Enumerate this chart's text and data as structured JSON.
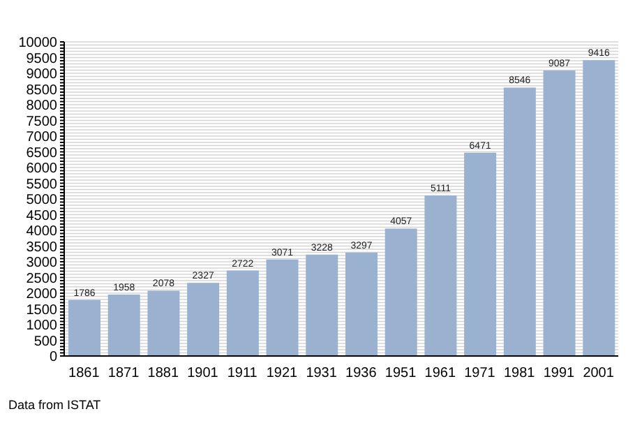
{
  "chart_data": {
    "type": "bar",
    "categories": [
      "1861",
      "1871",
      "1881",
      "1901",
      "1911",
      "1921",
      "1931",
      "1936",
      "1951",
      "1961",
      "1971",
      "1981",
      "1991",
      "2001"
    ],
    "values": [
      1786,
      1958,
      2078,
      2327,
      2722,
      3071,
      3228,
      3297,
      4057,
      5111,
      6471,
      8546,
      9087,
      9416
    ],
    "color": "#9ab2cf",
    "data_labels": true,
    "ylim": [
      0,
      10000
    ],
    "yticks": [
      0,
      {
        "value": 100,
        "label": null
      },
      {
        "value": 200,
        "label": null
      },
      {
        "value": 300,
        "label": null
      },
      {
        "value": 400,
        "label": null
      },
      500,
      {
        "value": 600,
        "label": null
      },
      {
        "value": 700,
        "label": null
      },
      {
        "value": 800,
        "label": null
      },
      {
        "value": 900,
        "label": null
      },
      1000,
      {
        "value": 1100,
        "label": null
      },
      {
        "value": 1200,
        "label": null
      },
      {
        "value": 1300,
        "label": null
      },
      {
        "value": 1400,
        "label": null
      },
      1500,
      {
        "value": 1600,
        "label": null
      },
      {
        "value": 1700,
        "label": null
      },
      {
        "value": 1800,
        "label": null
      },
      {
        "value": 1900,
        "label": null
      },
      2000,
      {
        "value": 2100,
        "label": null
      },
      {
        "value": 2200,
        "label": null
      },
      {
        "value": 2300,
        "label": null
      },
      {
        "value": 2400,
        "label": null
      },
      2500,
      {
        "value": 2600,
        "label": null
      },
      {
        "value": 2700,
        "label": null
      },
      {
        "value": 2800,
        "label": null
      },
      {
        "value": 2900,
        "label": null
      },
      3000,
      {
        "value": 3100,
        "label": null
      },
      {
        "value": 3200,
        "label": null
      },
      {
        "value": 3300,
        "label": null
      },
      {
        "value": 3400,
        "label": null
      },
      3500,
      {
        "value": 3600,
        "label": null
      },
      {
        "value": 3700,
        "label": null
      },
      {
        "value": 3800,
        "label": null
      },
      {
        "value": 3900,
        "label": null
      },
      4000,
      {
        "value": 4100,
        "label": null
      },
      {
        "value": 4200,
        "label": null
      },
      {
        "value": 4300,
        "label": null
      },
      {
        "value": 4400,
        "label": null
      },
      4500,
      {
        "value": 4600,
        "label": null
      },
      {
        "value": 4700,
        "label": null
      },
      {
        "value": 4800,
        "label": null
      },
      {
        "value": 4900,
        "label": null
      },
      5000,
      {
        "value": 5100,
        "label": null
      },
      {
        "value": 5200,
        "label": null
      },
      {
        "value": 5300,
        "label": null
      },
      {
        "value": 5400,
        "label": null
      },
      5500,
      {
        "value": 5600,
        "label": null
      },
      {
        "value": 5700,
        "label": null
      },
      {
        "value": 5800,
        "label": null
      },
      {
        "value": 5900,
        "label": null
      },
      6000,
      {
        "value": 6100,
        "label": null
      },
      {
        "value": 6200,
        "label": null
      },
      {
        "value": 6300,
        "label": null
      },
      {
        "value": 6400,
        "label": null
      },
      6500,
      {
        "value": 6600,
        "label": null
      },
      {
        "value": 6700,
        "label": null
      },
      {
        "value": 6800,
        "label": null
      },
      {
        "value": 6900,
        "label": null
      },
      7000,
      {
        "value": 7100,
        "label": null
      },
      {
        "value": 7200,
        "label": null
      },
      {
        "value": 7300,
        "label": null
      },
      {
        "value": 7400,
        "label": null
      },
      7500,
      {
        "value": 7600,
        "label": null
      },
      {
        "value": 7700,
        "label": null
      },
      {
        "value": 7800,
        "label": null
      },
      {
        "value": 7900,
        "label": null
      },
      8000,
      {
        "value": 8100,
        "label": null
      },
      {
        "value": 8200,
        "label": null
      },
      {
        "value": 8300,
        "label": null
      },
      {
        "value": 8400,
        "label": null
      },
      8500,
      {
        "value": 8600,
        "label": null
      },
      {
        "value": 8700,
        "label": null
      },
      {
        "value": 8800,
        "label": null
      },
      {
        "value": 8900,
        "label": null
      },
      9000,
      {
        "value": 9100,
        "label": null
      },
      {
        "value": 9200,
        "label": null
      },
      {
        "value": 9300,
        "label": null
      },
      {
        "value": 9400,
        "label": null
      },
      9500,
      {
        "value": 9600,
        "label": null
      },
      {
        "value": 9700,
        "label": null
      },
      {
        "value": 9800,
        "label": null
      },
      {
        "value": 9900,
        "label": null
      },
      10000
    ],
    "grid": "y",
    "annotations": [
      "Data from ISTAT"
    ]
  }
}
